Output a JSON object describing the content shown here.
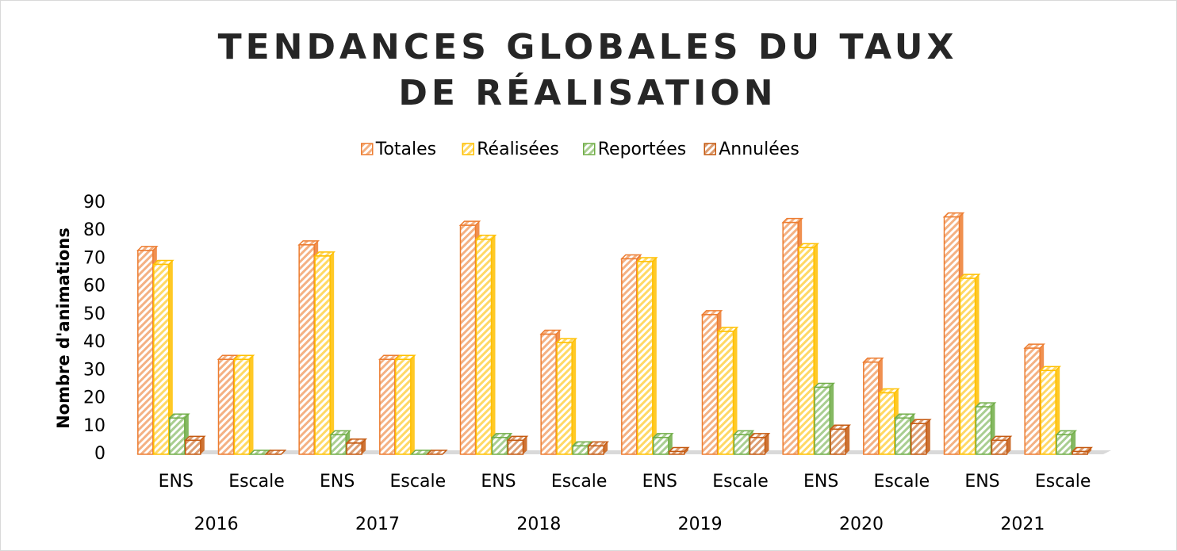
{
  "chart_data": {
    "type": "bar",
    "title": "TENDANCES GLOBALES DU TAUX DE RÉALISATION",
    "y_label": "Nombre d'animations",
    "categories": [
      "ENS",
      "Escale",
      "ENS",
      "Escale",
      "ENS",
      "Escale",
      "ENS",
      "Escale",
      "ENS",
      "Escale",
      "ENS",
      "Escale"
    ],
    "groups": [
      "2016",
      "2017",
      "2018",
      "2019",
      "2020",
      "2021"
    ],
    "series": [
      {
        "name": "Totales",
        "color": "#ed7d31",
        "values": [
          73,
          34,
          75,
          34,
          82,
          43,
          70,
          50,
          83,
          33,
          85,
          38
        ]
      },
      {
        "name": "Réalisées",
        "color": "#ffc000",
        "values": [
          68,
          34,
          71,
          34,
          77,
          40,
          69,
          44,
          74,
          22,
          63,
          30
        ]
      },
      {
        "name": "Reportées",
        "color": "#70ad47",
        "values": [
          13,
          0,
          7,
          0,
          6,
          3,
          6,
          7,
          24,
          13,
          17,
          7
        ]
      },
      {
        "name": "Annulées",
        "color": "#c55a11",
        "values": [
          5,
          0,
          4,
          0,
          5,
          3,
          1,
          6,
          9,
          11,
          5,
          1
        ]
      }
    ],
    "ylim": [
      0,
      90
    ],
    "yticks": [
      0,
      10,
      20,
      30,
      40,
      50,
      60,
      70,
      80,
      90
    ],
    "legend": "top",
    "grid": false
  }
}
